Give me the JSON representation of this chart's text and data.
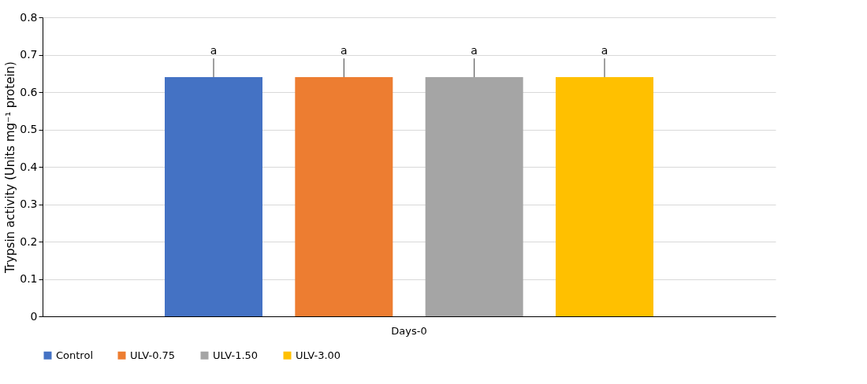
{
  "chart_data": {
    "type": "bar",
    "ylabel": "Trypsin activity (Units mg⁻¹ protein)",
    "categories": [
      "Days-0"
    ],
    "series": [
      {
        "name": "Control",
        "color": "#4472c4",
        "values": [
          0.64
        ],
        "errors": [
          0.05
        ],
        "value_labels": [
          "a"
        ]
      },
      {
        "name": "ULV-0.75",
        "color": "#ed7d31",
        "values": [
          0.64
        ],
        "errors": [
          0.05
        ],
        "value_labels": [
          "a"
        ]
      },
      {
        "name": "ULV-1.50",
        "color": "#a5a5a5",
        "values": [
          0.64
        ],
        "errors": [
          0.05
        ],
        "value_labels": [
          "a"
        ]
      },
      {
        "name": "ULV-3.00",
        "color": "#ffc000",
        "values": [
          0.64
        ],
        "errors": [
          0.05
        ],
        "value_labels": [
          "a"
        ]
      }
    ],
    "ylim": [
      0,
      0.8
    ],
    "yticks": [
      0,
      0.1,
      0.2,
      0.3,
      0.4,
      0.5,
      0.6,
      0.7,
      0.8
    ],
    "grid": "y",
    "legend": "bottom"
  }
}
